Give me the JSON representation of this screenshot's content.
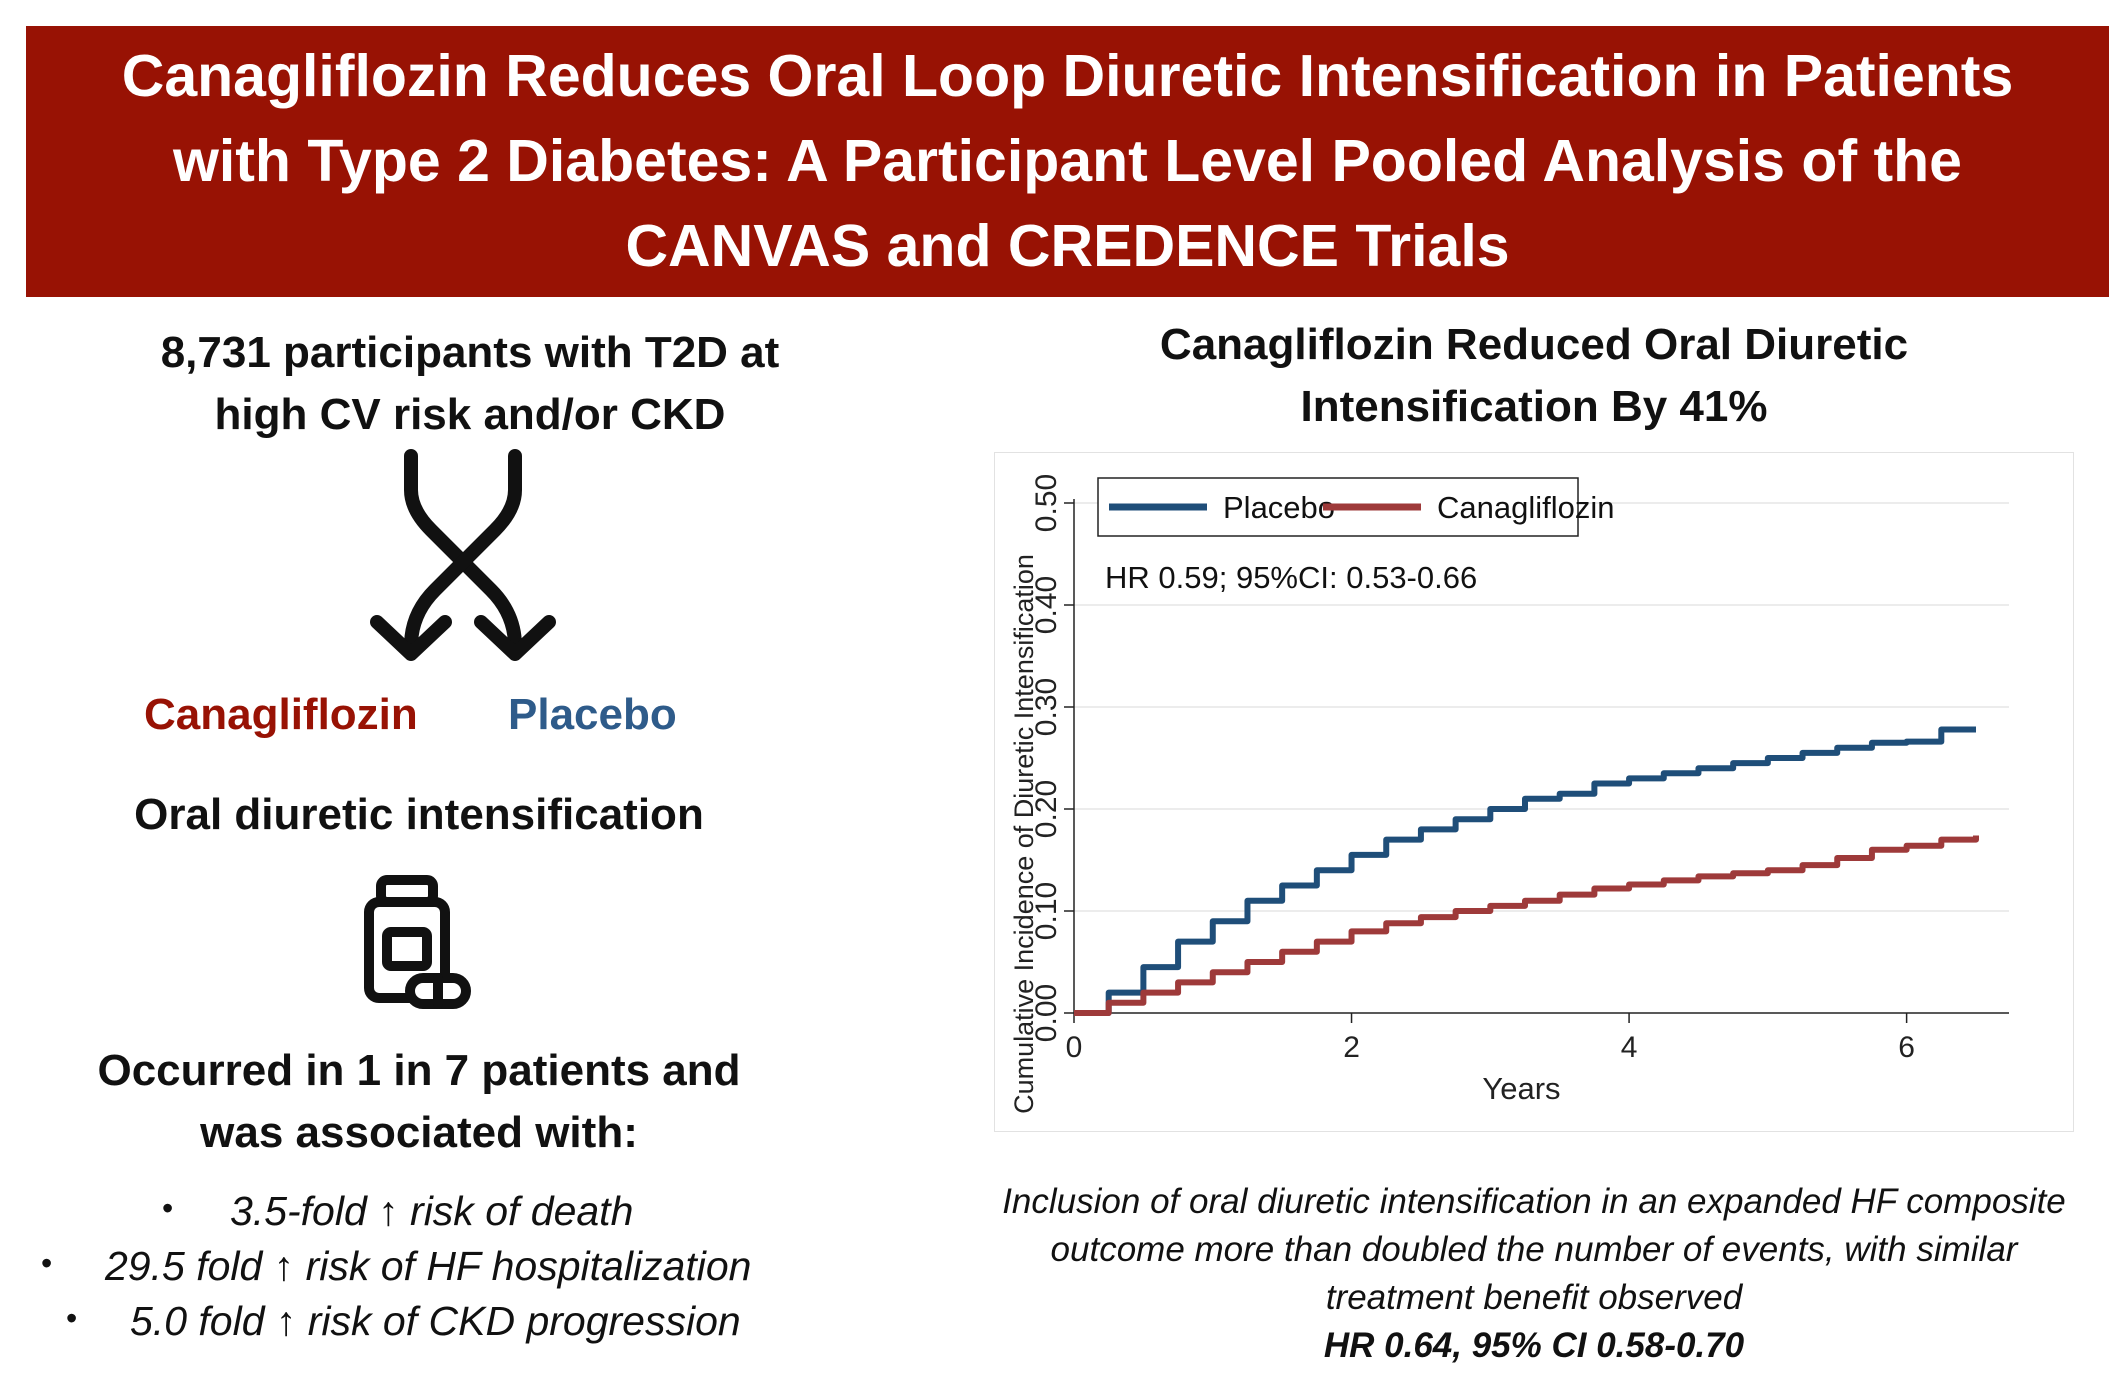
{
  "banner": {
    "title_lines": [
      "Canagliflozin Reduces Oral Loop Diuretic Intensification in Patients",
      "with Type 2 Diabetes: A Participant Level Pooled Analysis of the",
      "CANVAS and CREDENCE Trials"
    ]
  },
  "left": {
    "participants_lines": [
      "8,731 participants with T2D at",
      "high CV risk and/or CKD"
    ],
    "arm_canagliflozin": "Canagliflozin",
    "arm_placebo": "Placebo",
    "outcome_label": "Oral diuretic intensification",
    "occurrence_lines": [
      "Occurred in 1 in 7 patients and",
      "was associated with:"
    ],
    "bullets": [
      "3.5-fold ↑ risk of death",
      "29.5 fold ↑ risk of HF hospitalization",
      "5.0 fold ↑ risk of CKD progression"
    ],
    "bullet_glyph": "•",
    "icons": [
      "randomization-cross-arrows-icon",
      "pill-bottle-icon"
    ]
  },
  "right": {
    "title_lines": [
      "Canagliflozin Reduced Oral Diuretic",
      "Intensification By 41%"
    ],
    "caption_lines": [
      "Inclusion of oral diuretic intensification in an expanded HF composite",
      "outcome more than doubled the number of events, with similar",
      "treatment benefit observed"
    ],
    "caption_hr": "HR 0.64, 95% CI 0.58-0.70"
  },
  "chart_data": {
    "type": "line",
    "title": "",
    "xlabel": "Years",
    "ylabel": "Cumulative Incidence of Diuretic Intensification",
    "xlim": [
      0,
      6.5
    ],
    "ylim": [
      0,
      0.5
    ],
    "xticks": [
      0,
      2,
      4,
      6
    ],
    "xtick_labels": [
      "0",
      "2",
      "4",
      "6"
    ],
    "yticks": [
      0,
      0.1,
      0.2,
      0.3,
      0.4,
      0.5
    ],
    "ytick_labels": [
      "0.00",
      "0.10",
      "0.20",
      "0.30",
      "0.40",
      "0.50"
    ],
    "grid": "horizontal",
    "legend": "top-left",
    "annotation": "HR 0.59; 95%CI: 0.53-0.66",
    "colors": {
      "placebo": "#1f4e79",
      "canagliflozin": "#9e3a3a"
    },
    "series": [
      {
        "name": "Placebo",
        "x": [
          0,
          0.25,
          0.5,
          0.75,
          1,
          1.25,
          1.5,
          1.75,
          2,
          2.25,
          2.5,
          2.75,
          3,
          3.25,
          3.5,
          3.75,
          4,
          4.25,
          4.5,
          4.75,
          5,
          5.25,
          5.5,
          5.75,
          6,
          6.1,
          6.25,
          6.5
        ],
        "y": [
          0,
          0.02,
          0.045,
          0.07,
          0.09,
          0.11,
          0.125,
          0.14,
          0.155,
          0.17,
          0.18,
          0.19,
          0.2,
          0.21,
          0.215,
          0.225,
          0.23,
          0.235,
          0.24,
          0.245,
          0.25,
          0.255,
          0.26,
          0.265,
          0.266,
          0.266,
          0.278,
          0.278
        ]
      },
      {
        "name": "Canagliflozin",
        "x": [
          0,
          0.25,
          0.5,
          0.75,
          1,
          1.25,
          1.5,
          1.75,
          2,
          2.25,
          2.5,
          2.75,
          3,
          3.25,
          3.5,
          3.75,
          4,
          4.25,
          4.5,
          4.75,
          5,
          5.25,
          5.5,
          5.75,
          6,
          6.25,
          6.5
        ],
        "y": [
          0,
          0.01,
          0.02,
          0.03,
          0.04,
          0.05,
          0.06,
          0.07,
          0.08,
          0.088,
          0.094,
          0.1,
          0.105,
          0.11,
          0.116,
          0.122,
          0.126,
          0.13,
          0.134,
          0.137,
          0.14,
          0.145,
          0.152,
          0.16,
          0.164,
          0.17,
          0.174
        ]
      }
    ]
  }
}
